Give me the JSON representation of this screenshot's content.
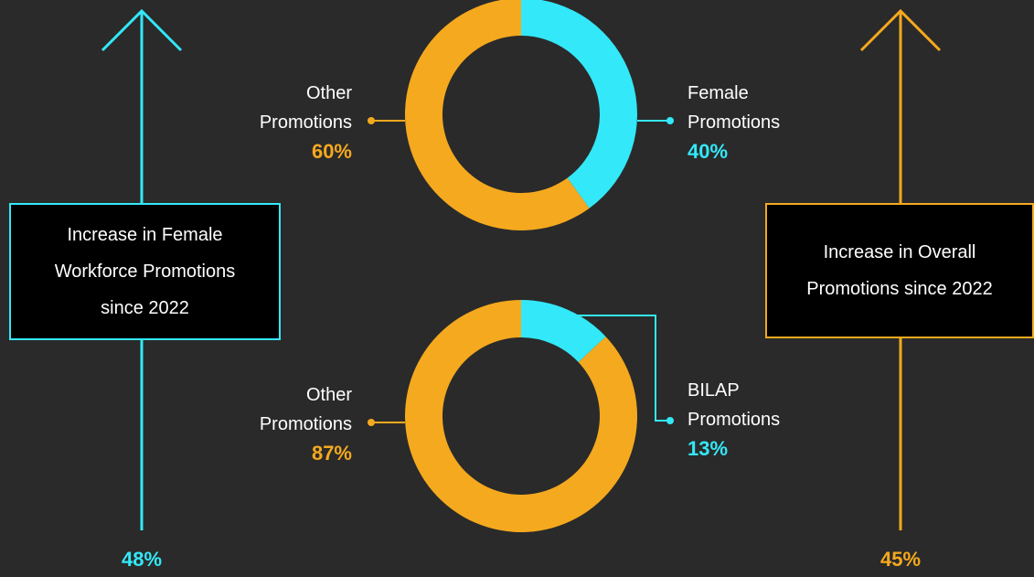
{
  "chart_data": [
    {
      "type": "pie",
      "donut": true,
      "categories": [
        "Female Promotions",
        "Other Promotions"
      ],
      "values": [
        40,
        60
      ],
      "value_labels": [
        "40%",
        "60%"
      ],
      "colors": [
        "#33e8f8",
        "#f5a91e"
      ]
    },
    {
      "type": "pie",
      "donut": true,
      "categories": [
        "BILAP Promotions",
        "Other Promotions"
      ],
      "values": [
        13,
        87
      ],
      "value_labels": [
        "13%",
        "87%"
      ],
      "colors": [
        "#33e8f8",
        "#f5a91e"
      ]
    }
  ],
  "indicators": [
    {
      "lines": [
        "Increase in Female",
        "Workforce Promotions",
        "since 2022"
      ],
      "value": "48%",
      "color": "#33e8f8"
    },
    {
      "lines": [
        "Increase in Overall",
        "Promotions since 2022"
      ],
      "value": "45%",
      "color": "#f5a91e"
    }
  ]
}
